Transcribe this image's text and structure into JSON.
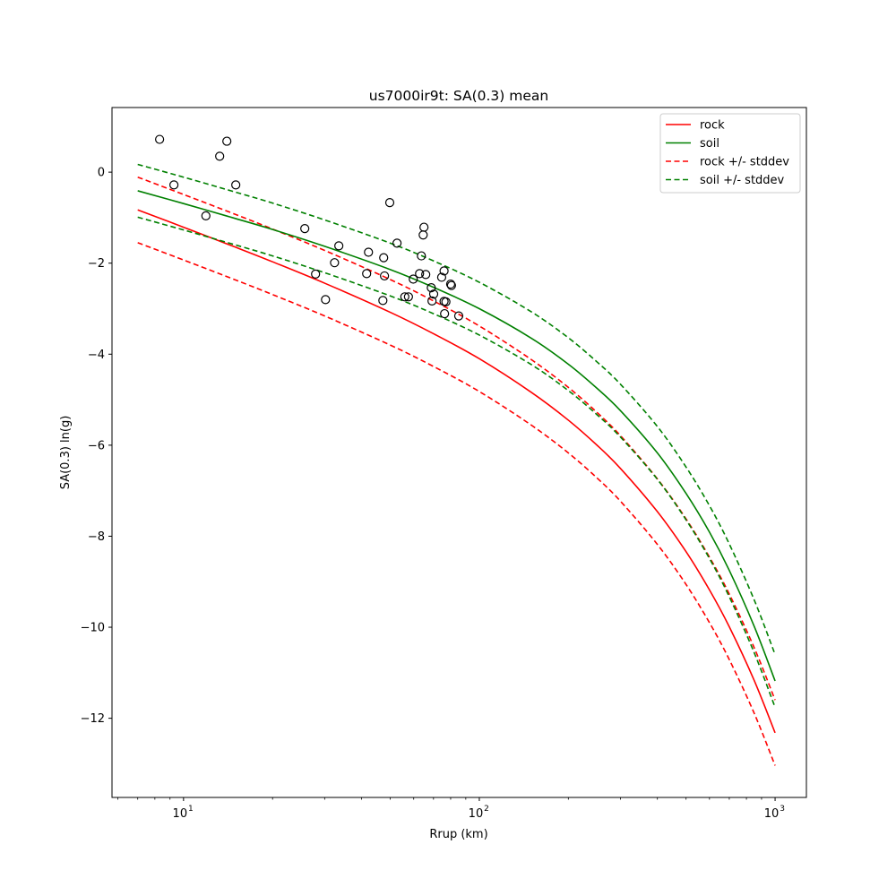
{
  "chart_data": {
    "type": "line",
    "title": "us7000ir9t: SA(0.3) mean",
    "xlabel": "Rrup (km)",
    "ylabel": "SA(0.3) ln(g)",
    "xscale": "log",
    "xlim": [
      5.73,
      1276
    ],
    "ylim": [
      -13.74,
      1.42
    ],
    "grid": false,
    "legend_position": "top-right",
    "x_ticks": [
      {
        "value": 10,
        "base": "10",
        "exp": "1"
      },
      {
        "value": 100,
        "base": "10",
        "exp": "2"
      },
      {
        "value": 1000,
        "base": "10",
        "exp": "3"
      }
    ],
    "y_ticks": [
      {
        "value": 0,
        "label": "0"
      },
      {
        "value": -2,
        "label": "−2"
      },
      {
        "value": -4,
        "label": "−4"
      },
      {
        "value": -6,
        "label": "−6"
      },
      {
        "value": -8,
        "label": "−8"
      },
      {
        "value": -10,
        "label": "−10"
      },
      {
        "value": -12,
        "label": "−12"
      }
    ],
    "x": [
      7,
      10,
      15,
      20,
      30,
      50,
      70,
      100,
      150,
      200,
      250,
      300,
      400,
      500,
      600,
      700,
      850,
      1000
    ],
    "series": [
      {
        "name": "rock",
        "color": "#ff0000",
        "style": "solid",
        "stddev": 0.72,
        "values": [
          -0.83,
          -1.21,
          -1.65,
          -1.97,
          -2.44,
          -3.08,
          -3.55,
          -4.1,
          -4.84,
          -5.45,
          -6.0,
          -6.51,
          -7.46,
          -8.34,
          -9.18,
          -9.99,
          -11.17,
          -12.32
        ]
      },
      {
        "name": "soil",
        "color": "#008000",
        "style": "solid",
        "stddev": 0.58,
        "values": [
          -0.41,
          -0.69,
          -1.02,
          -1.26,
          -1.63,
          -2.14,
          -2.53,
          -3.0,
          -3.65,
          -4.22,
          -4.75,
          -5.24,
          -6.17,
          -7.06,
          -7.91,
          -8.75,
          -9.98,
          -11.18
        ]
      }
    ],
    "legend": [
      {
        "label": "rock",
        "color": "#ff0000",
        "style": "solid"
      },
      {
        "label": "soil",
        "color": "#008000",
        "style": "solid"
      },
      {
        "label": "rock +/- stddev",
        "color": "#ff0000",
        "style": "dashed"
      },
      {
        "label": "soil +/- stddev",
        "color": "#008000",
        "style": "dashed"
      }
    ],
    "observations": [
      [
        8.3,
        0.72
      ],
      [
        14.01,
        0.68
      ],
      [
        13.25,
        0.35
      ],
      [
        9.28,
        -0.28
      ],
      [
        15.02,
        -0.28
      ],
      [
        11.9,
        -0.96
      ],
      [
        25.7,
        -1.24
      ],
      [
        33.5,
        -1.62
      ],
      [
        32.4,
        -1.99
      ],
      [
        27.95,
        -2.24
      ],
      [
        30.2,
        -2.8
      ],
      [
        49.8,
        -0.67
      ],
      [
        42.2,
        -1.76
      ],
      [
        47.5,
        -1.88
      ],
      [
        41.6,
        -2.23
      ],
      [
        47.8,
        -2.28
      ],
      [
        47.2,
        -2.82
      ],
      [
        52.7,
        -1.56
      ],
      [
        65.0,
        -1.21
      ],
      [
        64.6,
        -1.38
      ],
      [
        63.7,
        -1.84
      ],
      [
        62.8,
        -2.23
      ],
      [
        65.9,
        -2.25
      ],
      [
        59.8,
        -2.35
      ],
      [
        56.0,
        -2.74
      ],
      [
        57.6,
        -2.74
      ],
      [
        76.0,
        -2.17
      ],
      [
        74.6,
        -2.31
      ],
      [
        80.0,
        -2.46
      ],
      [
        80.5,
        -2.49
      ],
      [
        68.8,
        -2.54
      ],
      [
        70.1,
        -2.68
      ],
      [
        69.2,
        -2.83
      ],
      [
        76.0,
        -2.84
      ],
      [
        77.1,
        -2.85
      ],
      [
        76.3,
        -3.11
      ],
      [
        85.2,
        -3.16
      ]
    ]
  }
}
